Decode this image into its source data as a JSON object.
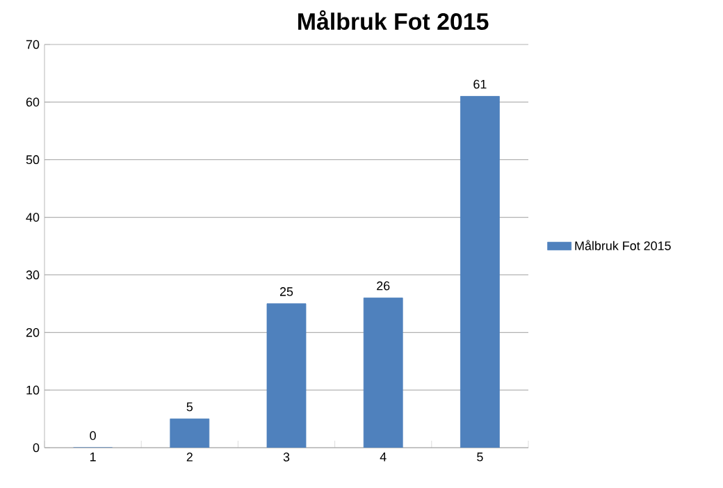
{
  "chart_data": {
    "type": "bar",
    "title": "Målbruk Fot 2015",
    "categories": [
      "1",
      "2",
      "3",
      "4",
      "5"
    ],
    "series": [
      {
        "name": "Målbruk Fot 2015",
        "color": "#4f81bd",
        "values": [
          0,
          5,
          25,
          26,
          61
        ]
      }
    ],
    "ylim": [
      0,
      70
    ],
    "yticks": [
      0,
      10,
      20,
      30,
      40,
      50,
      60,
      70
    ],
    "grid": "y",
    "legend": "right",
    "data_labels": true
  }
}
